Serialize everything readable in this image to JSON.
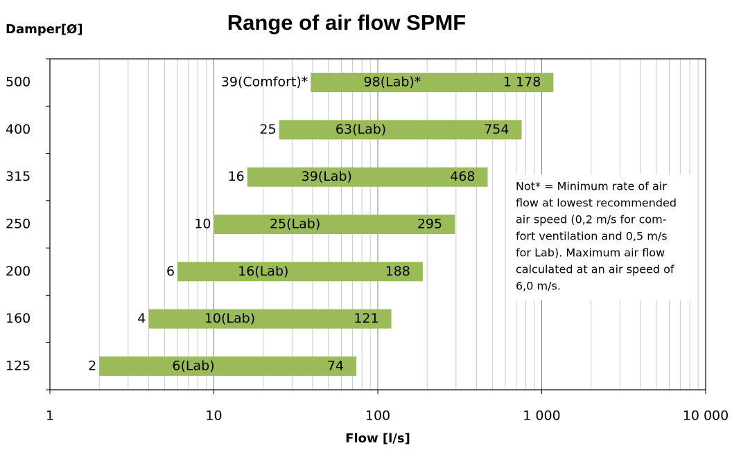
{
  "chart_data": {
    "type": "range-bar",
    "title": "Range of air flow SPMF",
    "y_label": "Damper[Ø]",
    "x_label": "Flow [l/s]",
    "categories": [
      "125",
      "160",
      "200",
      "250",
      "315",
      "400",
      "500"
    ],
    "start": {
      "values": [
        2,
        4,
        6,
        10,
        16,
        25,
        39
      ],
      "value_labels": [
        "2",
        "4",
        "6",
        "10",
        "16",
        "25",
        "39(Comfort)*"
      ]
    },
    "end": {
      "values": [
        74,
        121,
        188,
        295,
        468,
        754,
        1178
      ],
      "value_labels": [
        "74",
        "121",
        "188",
        "295",
        "468",
        "754",
        "1 178"
      ]
    },
    "lab": {
      "values": [
        6,
        10,
        16,
        25,
        39,
        63,
        98
      ],
      "value_labels": [
        "6(Lab)",
        "10(Lab)",
        "16(Lab)",
        "25(Lab)",
        "39(Lab)",
        "63(Lab)",
        "98(Lab)*"
      ],
      "color": "#e0117f"
    },
    "color": "#9bbb59",
    "xscale": "log",
    "xlim": [
      1,
      10000
    ],
    "xticks": [
      1,
      10,
      100,
      {
        "value": 1000,
        "label": "1 000"
      },
      {
        "value": 10000,
        "label": "10 000"
      }
    ],
    "minor_xticks": [
      2,
      3,
      4,
      5,
      6,
      7,
      8,
      9,
      20,
      30,
      40,
      50,
      60,
      70,
      80,
      90,
      200,
      300,
      400,
      500,
      600,
      700,
      800,
      900,
      2000,
      3000,
      4000,
      5000,
      6000,
      7000,
      8000,
      9000
    ],
    "grid": true,
    "annotation": [
      "Not* = Minimum rate of air",
      "flow at lowest recommended",
      "air speed (0,2 m/s for com-",
      "fort ventilation and 0,5 m/s",
      "for Lab). Maximum air flow",
      "calculated at an air speed of",
      "6,0 m/s."
    ]
  }
}
